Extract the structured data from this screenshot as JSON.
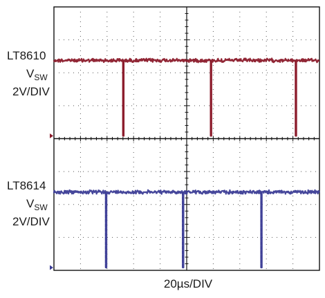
{
  "chart_data": [
    {
      "type": "line",
      "panel": "upper",
      "label_lines": [
        "LT8610",
        "V",
        "2V/DIV"
      ],
      "subscript": "SW",
      "color": "#8b1a2a",
      "grid": true,
      "x_divisions": 10,
      "y_divisions": 4,
      "volts_per_div": 2,
      "time_per_div_us": 20,
      "high_level_div": 2.25,
      "pulse_width_us": 0.5,
      "pulse_start_div": [
        2.6,
        5.9,
        9.1
      ],
      "pulse_low_div": [
        0,
        0,
        0
      ]
    },
    {
      "type": "line",
      "panel": "lower",
      "label_lines": [
        "LT8614",
        "V",
        "2V/DIV"
      ],
      "subscript": "SW",
      "color": "#3c3d96",
      "grid": true,
      "x_divisions": 10,
      "y_divisions": 4,
      "volts_per_div": 2,
      "time_per_div_us": 20,
      "high_level_div": 2.25,
      "pulse_width_us": 0.5,
      "pulse_start_div": [
        1.95,
        4.85,
        7.8
      ],
      "pulse_low_div": [
        0,
        0,
        0
      ]
    }
  ],
  "xlabel": "20µs/DIV"
}
